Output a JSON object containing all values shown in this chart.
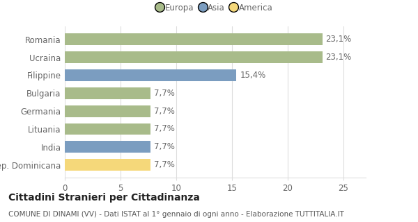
{
  "categories": [
    "Romania",
    "Ucraina",
    "Filippine",
    "Bulgaria",
    "Germania",
    "Lituania",
    "India",
    "Rep. Dominicana"
  ],
  "values": [
    23.1,
    23.1,
    15.4,
    7.7,
    7.7,
    7.7,
    7.7,
    7.7
  ],
  "labels": [
    "23,1%",
    "23,1%",
    "15,4%",
    "7,7%",
    "7,7%",
    "7,7%",
    "7,7%",
    "7,7%"
  ],
  "colors": [
    "#a8bb8a",
    "#a8bb8a",
    "#7b9dc0",
    "#a8bb8a",
    "#a8bb8a",
    "#a8bb8a",
    "#7b9dc0",
    "#f5d87a"
  ],
  "legend": [
    {
      "label": "Europa",
      "color": "#a8bb8a"
    },
    {
      "label": "Asia",
      "color": "#7b9dc0"
    },
    {
      "label": "America",
      "color": "#f5d87a"
    }
  ],
  "xlim": [
    0,
    27
  ],
  "xticks": [
    0,
    5,
    10,
    15,
    20,
    25
  ],
  "title_main": "Cittadini Stranieri per Cittadinanza",
  "title_sub": "COMUNE DI DINAMI (VV) - Dati ISTAT al 1° gennaio di ogni anno - Elaborazione TUTTITALIA.IT",
  "background_color": "#ffffff",
  "grid_color": "#dddddd",
  "bar_height": 0.65,
  "label_fontsize": 8.5,
  "tick_fontsize": 8.5,
  "title_fontsize": 10,
  "sub_fontsize": 7.5
}
